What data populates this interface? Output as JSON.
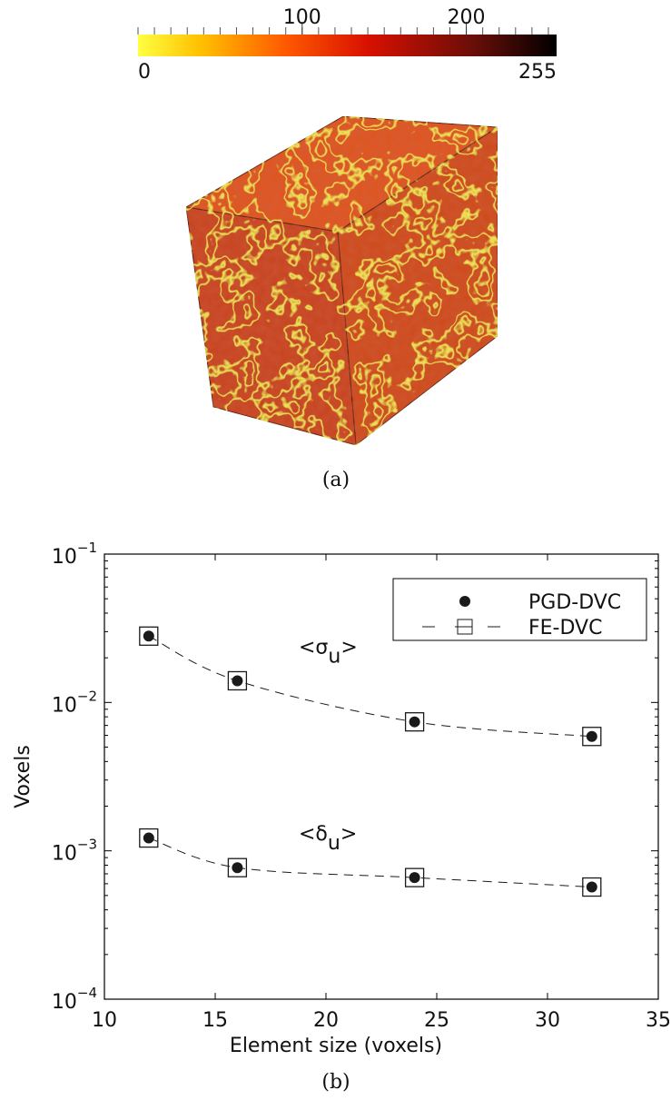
{
  "figure_a": {
    "colorbar": {
      "min": 0,
      "max": 255,
      "ticks": [
        100,
        200
      ]
    },
    "caption": "(a)"
  },
  "chart_data": {
    "type": "scatter",
    "caption": "(b)",
    "xlabel": "Element size (voxels)",
    "ylabel": "Voxels",
    "x": [
      12,
      16,
      24,
      32
    ],
    "xlim": [
      10,
      35
    ],
    "xticks": [
      10,
      15,
      20,
      25,
      30,
      35
    ],
    "ylim": [
      0.0001,
      0.1
    ],
    "log_y": true,
    "yticks": [
      {
        "value": 0.0001,
        "label": "10",
        "exponent": "−4"
      },
      {
        "value": 0.001,
        "label": "10",
        "exponent": "−3"
      },
      {
        "value": 0.01,
        "label": "10",
        "exponent": "−2"
      },
      {
        "value": 0.1,
        "label": "10",
        "exponent": "−1"
      }
    ],
    "legend": "upper right",
    "series": [
      {
        "name": "PGD-DVC",
        "color": "#1a1a1a",
        "marker": "circle",
        "sigma": [
          0.028,
          0.014,
          0.0074,
          0.0059
        ],
        "delta": [
          0.00122,
          0.00077,
          0.00066,
          0.00057
        ]
      },
      {
        "name": "FE-DVC",
        "color": "#1a1a1a",
        "marker": "square",
        "line": "dashed",
        "sigma": [
          0.028,
          0.014,
          0.0074,
          0.0059
        ],
        "delta": [
          0.00122,
          0.00077,
          0.00066,
          0.00057
        ]
      }
    ],
    "annotations": [
      {
        "text": "<σ",
        "subscript": "u",
        "suffix": ">"
      },
      {
        "text": "<δ",
        "subscript": "u",
        "suffix": ">"
      }
    ]
  }
}
